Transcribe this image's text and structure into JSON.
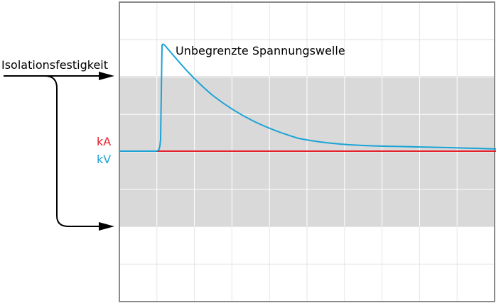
{
  "labels": {
    "isolation": "Isolationsfestigkeit",
    "wave": "Unbegrenzte Spannungswelle",
    "current_unit": "kA",
    "voltage_unit": "kV"
  },
  "colors": {
    "current": "#e3222c",
    "voltage": "#1ba3d6",
    "band": "#d9d9d9",
    "grid": "#ffffff",
    "grid_outside": "#e6e6e6",
    "frame": "#8a8a8a",
    "arrow": "#000000",
    "text": "#000000"
  },
  "grid": {
    "columns": 10,
    "rows": 8
  }
}
